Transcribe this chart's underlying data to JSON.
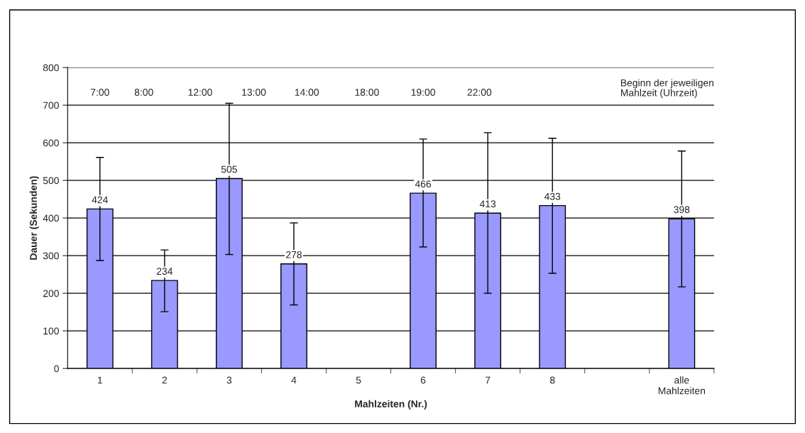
{
  "chart_data": {
    "type": "bar",
    "xlabel": "Mahlzeiten (Nr.)",
    "ylabel": "Dauer (Sekunden)",
    "categories": [
      "1",
      "2",
      "3",
      "4",
      "5",
      "6",
      "7",
      "8",
      null,
      "alle\nMahlzeiten"
    ],
    "values": [
      424,
      234,
      505,
      278,
      null,
      466,
      413,
      433,
      null,
      398
    ],
    "errors": [
      [
        287,
        561
      ],
      [
        151,
        315
      ],
      [
        303,
        705
      ],
      [
        169,
        387
      ],
      null,
      [
        323,
        610
      ],
      [
        200,
        627
      ],
      [
        253,
        612
      ],
      null,
      [
        217,
        578
      ]
    ],
    "color": "#9999ff",
    "data_labels": true,
    "ylim": [
      0,
      800
    ],
    "yticks": [
      0,
      100,
      200,
      300,
      400,
      500,
      600,
      700,
      800
    ],
    "grid": "y",
    "annotations": [
      "7:00",
      "8:00",
      "12:00",
      "13:00",
      "14:00",
      "18:00",
      "19:00",
      "22:00",
      "Beginn der jeweiligen\nMahlzeit (Uhrzeit)"
    ]
  }
}
